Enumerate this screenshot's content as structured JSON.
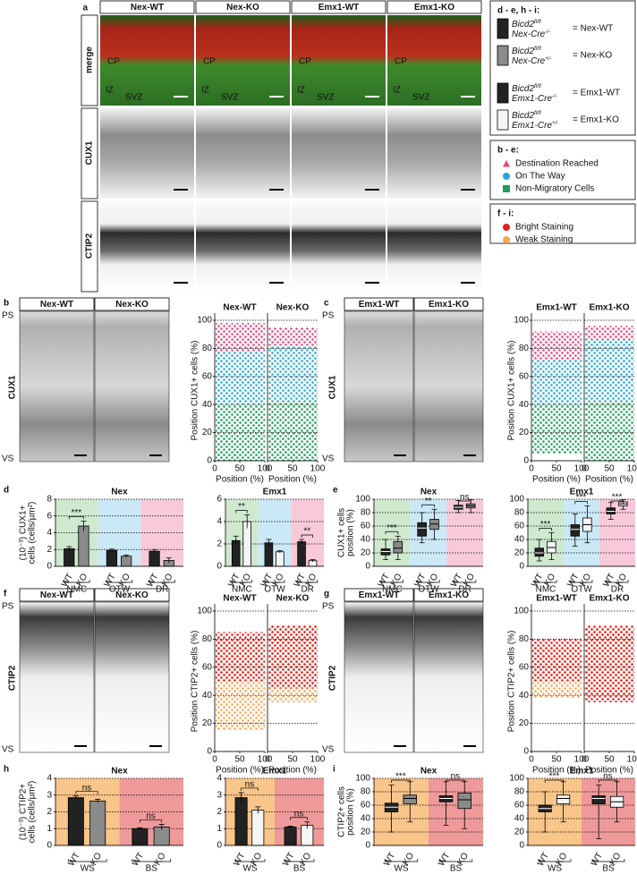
{
  "figure": {
    "panel_a": {
      "label": "a",
      "columns": [
        "Nex-WT",
        "Nex-KO",
        "Emx1-WT",
        "Emx1-KO"
      ],
      "rows": [
        {
          "label": "merge",
          "color": "#000000"
        },
        {
          "label": "CUX1",
          "color": "#1c9a3c"
        },
        {
          "label": "CTIP2",
          "color": "#d42020"
        }
      ],
      "regions": [
        "CP",
        "IZ",
        "SVZ"
      ]
    },
    "legend_genotype": {
      "title": "d - e, h - i:",
      "entries": [
        {
          "gene": "Bicd2",
          "gene_sup": "fl/fl",
          "cre": "Nex-Cre",
          "cre_sup": "-/-",
          "label": "= Nex-WT",
          "color": "#222222"
        },
        {
          "gene": "Bicd2",
          "gene_sup": "fl/fl",
          "cre": "Nex-Cre",
          "cre_sup": "+/-",
          "label": "= Nex-KO",
          "color": "#8a8a8a"
        },
        {
          "gene": "Bicd2",
          "gene_sup": "fl/fl",
          "cre": "Emx1-Cre",
          "cre_sup": "-/-",
          "label": "= Emx1-WT",
          "color": "#222222"
        },
        {
          "gene": "Bicd2",
          "gene_sup": "fl/fl",
          "cre": "Emx1-Cre",
          "cre_sup": "+/-",
          "label": "= Emx1-KO",
          "color": "#f5f5f5"
        }
      ]
    },
    "legend_migration": {
      "title": "b - e:",
      "items": [
        {
          "text": "Destination Reached",
          "color": "#e8457f",
          "shape": "triangle"
        },
        {
          "text": "On The Way",
          "color": "#29a8d8",
          "shape": "circle"
        },
        {
          "text": "Non-Migratory Cells",
          "color": "#1f9e5a",
          "shape": "square"
        }
      ]
    },
    "legend_staining": {
      "title": "f - i:",
      "items": [
        {
          "text": "Bright Staining",
          "color": "#e32020",
          "shape": "circle"
        },
        {
          "text": "Weak Staining",
          "color": "#f5a650",
          "shape": "circle"
        }
      ]
    },
    "image_panels": [
      {
        "label": "b",
        "stain": "CUX1",
        "columns": [
          "Nex-WT",
          "Nex-KO"
        ],
        "top": "PS",
        "bottom": "VS"
      },
      {
        "label": "c",
        "stain": "CUX1",
        "columns": [
          "Emx1-WT",
          "Emx1-KO"
        ],
        "top": "PS",
        "bottom": "VS"
      },
      {
        "label": "f",
        "stain": "CTIP2",
        "columns": [
          "Nex-WT",
          "Nex-KO"
        ],
        "top": "PS",
        "bottom": "VS"
      },
      {
        "label": "g",
        "stain": "CTIP2",
        "columns": [
          "Emx1-WT",
          "Emx1-KO"
        ],
        "top": "PS",
        "bottom": "VS"
      }
    ],
    "chart_panel_labels": [
      "d",
      "e",
      "h",
      "i"
    ]
  },
  "chart_data": [
    {
      "type": "scatter",
      "ylabel": "Position CUX1+ cells (%)",
      "xlabel": "Position (%)",
      "xlim": [
        0,
        100
      ],
      "ylim": [
        0,
        100
      ],
      "xticks": [
        0,
        50,
        100
      ],
      "yticks": [
        0,
        20,
        40,
        60,
        80,
        100
      ],
      "plots": [
        {
          "title": "Nex-WT",
          "bands": [
            {
              "from": 78,
              "to": 98,
              "color": "#e8457f"
            },
            {
              "from": 40,
              "to": 78,
              "color": "#29a8d8"
            },
            {
              "from": 0,
              "to": 40,
              "color": "#1f9e5a"
            }
          ]
        },
        {
          "title": "Nex-KO",
          "bands": [
            {
              "from": 82,
              "to": 95,
              "color": "#e8457f"
            },
            {
              "from": 42,
              "to": 82,
              "color": "#29a8d8"
            },
            {
              "from": 0,
              "to": 42,
              "color": "#1f9e5a"
            }
          ]
        }
      ]
    },
    {
      "type": "scatter",
      "ylabel": "Position CUX1+ cells (%)",
      "xlabel": "Position (%)",
      "xlim": [
        0,
        100
      ],
      "ylim": [
        0,
        100
      ],
      "xticks": [
        0,
        50,
        100
      ],
      "yticks": [
        0,
        20,
        40,
        60,
        80,
        100
      ],
      "plots": [
        {
          "title": "Emx1-WT",
          "bands": [
            {
              "from": 72,
              "to": 92,
              "color": "#e8457f"
            },
            {
              "from": 40,
              "to": 72,
              "color": "#29a8d8"
            },
            {
              "from": 5,
              "to": 40,
              "color": "#1f9e5a"
            }
          ]
        },
        {
          "title": "Emx1-KO",
          "bands": [
            {
              "from": 86,
              "to": 96,
              "color": "#e8457f"
            },
            {
              "from": 42,
              "to": 86,
              "color": "#29a8d8"
            },
            {
              "from": 0,
              "to": 42,
              "color": "#1f9e5a"
            }
          ]
        }
      ]
    },
    {
      "type": "bar",
      "title": "Nex",
      "ylabel": [
        "(10⁻³) CUX1+",
        "cells (cells/µm²)"
      ],
      "categories": [
        "NMC",
        "OTW",
        "DR"
      ],
      "category_colors": [
        "#cfe9cf",
        "#cbe8f7",
        "#f8c9da"
      ],
      "ylim": [
        0,
        8
      ],
      "yticks": [
        0,
        2,
        4,
        6,
        8
      ],
      "series": [
        {
          "name": "WT",
          "color": "#222222",
          "values": [
            2.1,
            1.9,
            1.8
          ],
          "errors": [
            0.25,
            0.15,
            0.2
          ]
        },
        {
          "name": "KO",
          "color": "#8a8a8a",
          "values": [
            4.8,
            1.2,
            0.7
          ],
          "errors": [
            0.6,
            0.15,
            0.3
          ]
        }
      ],
      "significance": [
        {
          "category": 0,
          "label": "***"
        }
      ]
    },
    {
      "type": "bar",
      "title": "Emx1",
      "categories": [
        "NMC",
        "OTW",
        "DR"
      ],
      "category_colors": [
        "#cfe9cf",
        "#cbe8f7",
        "#f8c9da"
      ],
      "ylim": [
        0,
        6
      ],
      "yticks": [
        0,
        2,
        4,
        6
      ],
      "series": [
        {
          "name": "WT",
          "color": "#222222",
          "values": [
            2.3,
            2.1,
            2.2
          ],
          "errors": [
            0.4,
            0.3,
            0.2
          ]
        },
        {
          "name": "KO",
          "color": "#f5f5f5",
          "values": [
            4.0,
            1.3,
            0.5
          ],
          "errors": [
            0.6,
            0.1,
            0.1
          ]
        }
      ],
      "significance": [
        {
          "category": 0,
          "label": "**"
        },
        {
          "category": 2,
          "label": "**"
        }
      ]
    },
    {
      "type": "box",
      "title": "Nex",
      "ylabel": [
        "CUX1+ cells",
        "position (%)"
      ],
      "categories": [
        "NMC",
        "OTW",
        "DR"
      ],
      "category_colors": [
        "#cfe9cf",
        "#cbe8f7",
        "#f8c9da"
      ],
      "ylim": [
        0,
        100
      ],
      "yticks": [
        0,
        20,
        40,
        60,
        80,
        100
      ],
      "series": [
        {
          "name": "WT",
          "color": "#222222",
          "boxes": [
            [
              10,
              17,
              22,
              26,
              40
            ],
            [
              35,
              45,
              57,
              65,
              80
            ],
            [
              80,
              85,
              88,
              91,
              98
            ]
          ]
        },
        {
          "name": "KO",
          "color": "#8a8a8a",
          "boxes": [
            [
              10,
              20,
              27,
              37,
              45
            ],
            [
              40,
              55,
              63,
              70,
              85
            ],
            [
              80,
              87,
              90,
              93,
              99
            ]
          ]
        }
      ],
      "significance": [
        {
          "category": 0,
          "label": "***"
        },
        {
          "category": 1,
          "label": "**"
        },
        {
          "category": 2,
          "label": "ns"
        }
      ]
    },
    {
      "type": "box",
      "title": "Emx1",
      "categories": [
        "NMC",
        "OTW",
        "DR"
      ],
      "category_colors": [
        "#cfe9cf",
        "#cbe8f7",
        "#f8c9da"
      ],
      "ylim": [
        0,
        100
      ],
      "yticks": [
        0,
        20,
        40,
        60,
        80,
        100
      ],
      "series": [
        {
          "name": "WT",
          "color": "#222222",
          "boxes": [
            [
              8,
              15,
              20,
              27,
              40
            ],
            [
              30,
              45,
              55,
              62,
              78
            ],
            [
              70,
              78,
              82,
              87,
              95
            ]
          ]
        },
        {
          "name": "KO",
          "color": "#f5f5f5",
          "boxes": [
            [
              10,
              20,
              28,
              37,
              50
            ],
            [
              35,
              52,
              62,
              72,
              90
            ],
            [
              85,
              90,
              93,
              96,
              99
            ]
          ]
        }
      ],
      "significance": [
        {
          "category": 0,
          "label": "***"
        },
        {
          "category": 1,
          "label": "***"
        },
        {
          "category": 2,
          "label": "***"
        }
      ]
    },
    {
      "type": "scatter",
      "ylabel": "Position CTIP2+ cells (%)",
      "xlabel": "Position (%)",
      "xlim": [
        0,
        100
      ],
      "ylim": [
        0,
        100
      ],
      "xticks": [
        0,
        50,
        100
      ],
      "yticks": [
        0,
        20,
        40,
        60,
        80,
        100
      ],
      "plots": [
        {
          "title": "Nex-WT",
          "bands": [
            {
              "from": 15,
              "to": 80,
              "color": "#f5a650"
            },
            {
              "from": 50,
              "to": 85,
              "color": "#e32020"
            }
          ]
        },
        {
          "title": "Nex-KO",
          "bands": [
            {
              "from": 35,
              "to": 90,
              "color": "#f5a650"
            },
            {
              "from": 45,
              "to": 90,
              "color": "#e32020"
            }
          ]
        }
      ]
    },
    {
      "type": "scatter",
      "ylabel": "Position CTIP2+ cells (%)",
      "xlabel": "Position (%)",
      "xlim": [
        0,
        100
      ],
      "ylim": [
        0,
        100
      ],
      "xticks": [
        0,
        50,
        100
      ],
      "yticks": [
        0,
        20,
        40,
        60,
        80,
        100
      ],
      "plots": [
        {
          "title": "Emx1-WT",
          "bands": [
            {
              "from": 38,
              "to": 75,
              "color": "#f5a650"
            },
            {
              "from": 50,
              "to": 80,
              "color": "#e32020"
            }
          ]
        },
        {
          "title": "Emx1-KO",
          "bands": [
            {
              "from": 40,
              "to": 88,
              "color": "#f5a650"
            },
            {
              "from": 35,
              "to": 90,
              "color": "#e32020"
            }
          ]
        }
      ]
    },
    {
      "type": "bar",
      "title": "Nex",
      "ylabel": [
        "(10⁻³) CTIP2+",
        "cells (cells/µm²)"
      ],
      "categories": [
        "WS",
        "BS"
      ],
      "category_colors": [
        "#f8c58a",
        "#ef9a9a"
      ],
      "ylim": [
        0,
        4
      ],
      "yticks": [
        0,
        1,
        2,
        3,
        4
      ],
      "series": [
        {
          "name": "WT",
          "color": "#222222",
          "values": [
            2.85,
            1.0
          ],
          "errors": [
            0.1,
            0.05
          ]
        },
        {
          "name": "KO",
          "color": "#8a8a8a",
          "values": [
            2.65,
            1.1
          ],
          "errors": [
            0.1,
            0.15
          ]
        }
      ],
      "significance": [
        {
          "category": 0,
          "label": "ns"
        },
        {
          "category": 1,
          "label": "ns"
        }
      ]
    },
    {
      "type": "bar",
      "title": "Emx1",
      "categories": [
        "WS",
        "BS"
      ],
      "category_colors": [
        "#f8c58a",
        "#ef9a9a"
      ],
      "ylim": [
        0,
        4
      ],
      "yticks": [
        0,
        1,
        2,
        3,
        4
      ],
      "series": [
        {
          "name": "WT",
          "color": "#222222",
          "values": [
            2.85,
            1.1
          ],
          "errors": [
            0.3,
            0.05
          ]
        },
        {
          "name": "KO",
          "color": "#f5f5f5",
          "values": [
            2.1,
            1.2
          ],
          "errors": [
            0.2,
            0.2
          ]
        }
      ],
      "significance": [
        {
          "category": 0,
          "label": "ns"
        },
        {
          "category": 1,
          "label": "ns"
        }
      ]
    },
    {
      "type": "box",
      "title": "Nex",
      "ylabel": [
        "CTIP2+ cells",
        "position (%)"
      ],
      "categories": [
        "WS",
        "BS"
      ],
      "category_colors": [
        "#f8c58a",
        "#ef9a9a"
      ],
      "ylim": [
        0,
        100
      ],
      "yticks": [
        0,
        20,
        40,
        60,
        80,
        100
      ],
      "series": [
        {
          "name": "WT",
          "color": "#222222",
          "boxes": [
            [
              20,
              50,
              57,
              63,
              90
            ],
            [
              30,
              65,
              70,
              74,
              95
            ]
          ]
        },
        {
          "name": "KO",
          "color": "#8a8a8a",
          "boxes": [
            [
              35,
              62,
              70,
              75,
              95
            ],
            [
              25,
              55,
              68,
              78,
              95
            ]
          ]
        }
      ],
      "significance": [
        {
          "category": 0,
          "label": "***"
        },
        {
          "category": 1,
          "label": "ns"
        }
      ]
    },
    {
      "type": "box",
      "title": "Emx1",
      "categories": [
        "WS",
        "BS"
      ],
      "category_colors": [
        "#f8c58a",
        "#ef9a9a"
      ],
      "ylim": [
        0,
        100
      ],
      "yticks": [
        0,
        20,
        40,
        60,
        80,
        100
      ],
      "series": [
        {
          "name": "WT",
          "color": "#222222",
          "boxes": [
            [
              20,
              50,
              55,
              60,
              80
            ],
            [
              10,
              62,
              70,
              74,
              90
            ]
          ]
        },
        {
          "name": "KO",
          "color": "#f5f5f5",
          "boxes": [
            [
              35,
              62,
              70,
              75,
              95
            ],
            [
              35,
              57,
              65,
              73,
              95
            ]
          ]
        }
      ],
      "significance": [
        {
          "category": 0,
          "label": "***"
        },
        {
          "category": 1,
          "label": "ns"
        }
      ]
    }
  ]
}
